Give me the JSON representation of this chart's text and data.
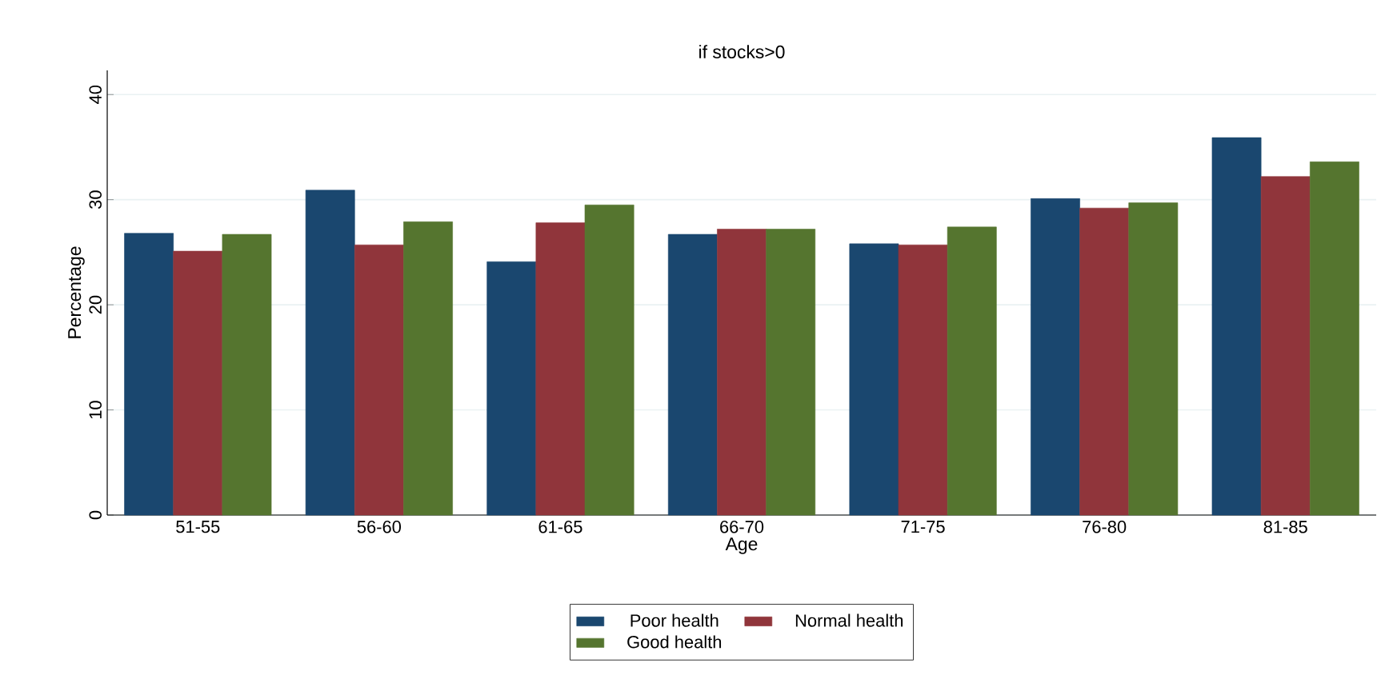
{
  "chart_data": {
    "type": "bar",
    "title": "if stocks>0",
    "xlabel": "Age",
    "ylabel": "Percentage",
    "categories": [
      "51-55",
      "56-60",
      "61-65",
      "66-70",
      "71-75",
      "76-80",
      "81-85"
    ],
    "series": [
      {
        "name": "Poor health",
        "color": "#1a476f",
        "values": [
          26.8,
          30.9,
          24.1,
          26.7,
          25.8,
          30.1,
          35.9
        ]
      },
      {
        "name": "Normal health",
        "color": "#90353b",
        "values": [
          25.1,
          25.7,
          27.8,
          27.2,
          25.7,
          29.2,
          32.2
        ]
      },
      {
        "name": "Good health",
        "color": "#55752f",
        "values": [
          26.7,
          27.9,
          29.5,
          27.2,
          27.4,
          29.7,
          33.6
        ]
      }
    ],
    "ylim": [
      0,
      42.3
    ],
    "yticks": [
      0,
      10,
      20,
      30,
      40
    ],
    "grid": "y",
    "legend": "bottom"
  }
}
